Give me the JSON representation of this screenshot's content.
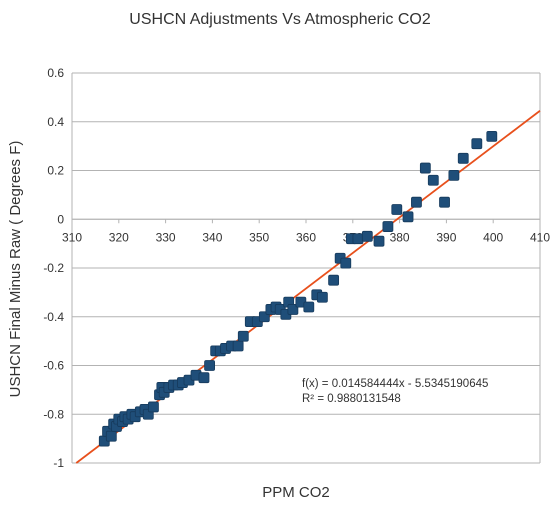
{
  "chart_data": {
    "type": "scatter",
    "title": "USHCN  Adjustments Vs Atmospheric CO2",
    "xlabel": "PPM CO2",
    "ylabel": "USHCN Final Minus Raw ( Degrees F)",
    "xlim": [
      310,
      410
    ],
    "ylim": [
      -1,
      0.6
    ],
    "x_ticks": [
      310,
      320,
      330,
      340,
      350,
      360,
      370,
      380,
      390,
      400,
      410
    ],
    "y_ticks": [
      0.6,
      0.4,
      0.2,
      0,
      -0.2,
      -0.4,
      -0.6,
      -0.8,
      -1
    ],
    "grid": "horizontal",
    "marker_color": "#1f4e79",
    "trendline_color": "#e8501c",
    "trendline": {
      "slope": 0.014584444,
      "intercept": -5.5345190645
    },
    "annotations": {
      "equation": "f(x) = 0.014584444x - 5.5345190645",
      "r_squared": "R² = 0.9880131548"
    },
    "series": [
      {
        "points": [
          [
            316.9,
            -0.91
          ],
          [
            317.6,
            -0.87
          ],
          [
            318.4,
            -0.89
          ],
          [
            318.9,
            -0.84
          ],
          [
            319.5,
            -0.85
          ],
          [
            320.0,
            -0.82
          ],
          [
            320.8,
            -0.83
          ],
          [
            321.3,
            -0.81
          ],
          [
            322.0,
            -0.82
          ],
          [
            322.8,
            -0.8
          ],
          [
            323.5,
            -0.81
          ],
          [
            324.6,
            -0.79
          ],
          [
            325.6,
            -0.78
          ],
          [
            326.3,
            -0.8
          ],
          [
            327.4,
            -0.77
          ],
          [
            328.7,
            -0.72
          ],
          [
            329.2,
            -0.69
          ],
          [
            329.7,
            -0.71
          ],
          [
            330.7,
            -0.69
          ],
          [
            331.7,
            -0.68
          ],
          [
            332.7,
            -0.68
          ],
          [
            333.6,
            -0.67
          ],
          [
            335.0,
            -0.66
          ],
          [
            336.5,
            -0.64
          ],
          [
            338.2,
            -0.65
          ],
          [
            339.4,
            -0.6
          ],
          [
            340.7,
            -0.54
          ],
          [
            341.7,
            -0.54
          ],
          [
            342.8,
            -0.53
          ],
          [
            344.1,
            -0.52
          ],
          [
            345.5,
            -0.52
          ],
          [
            346.6,
            -0.48
          ],
          [
            348.1,
            -0.42
          ],
          [
            349.6,
            -0.42
          ],
          [
            351.1,
            -0.4
          ],
          [
            352.5,
            -0.37
          ],
          [
            353.6,
            -0.36
          ],
          [
            354.5,
            -0.37
          ],
          [
            355.7,
            -0.39
          ],
          [
            356.3,
            -0.34
          ],
          [
            357.2,
            -0.37
          ],
          [
            358.9,
            -0.34
          ],
          [
            360.6,
            -0.36
          ],
          [
            362.3,
            -0.31
          ],
          [
            363.5,
            -0.32
          ],
          [
            365.9,
            -0.25
          ],
          [
            367.3,
            -0.16
          ],
          [
            368.5,
            -0.18
          ],
          [
            369.7,
            -0.08
          ],
          [
            371.1,
            -0.08
          ],
          [
            373.1,
            -0.07
          ],
          [
            375.6,
            -0.09
          ],
          [
            377.5,
            -0.03
          ],
          [
            379.4,
            0.04
          ],
          [
            381.8,
            0.01
          ],
          [
            383.6,
            0.07
          ],
          [
            385.5,
            0.21
          ],
          [
            387.2,
            0.16
          ],
          [
            389.6,
            0.07
          ],
          [
            391.6,
            0.18
          ],
          [
            393.6,
            0.25
          ],
          [
            396.5,
            0.31
          ],
          [
            399.7,
            0.34
          ]
        ]
      }
    ]
  }
}
